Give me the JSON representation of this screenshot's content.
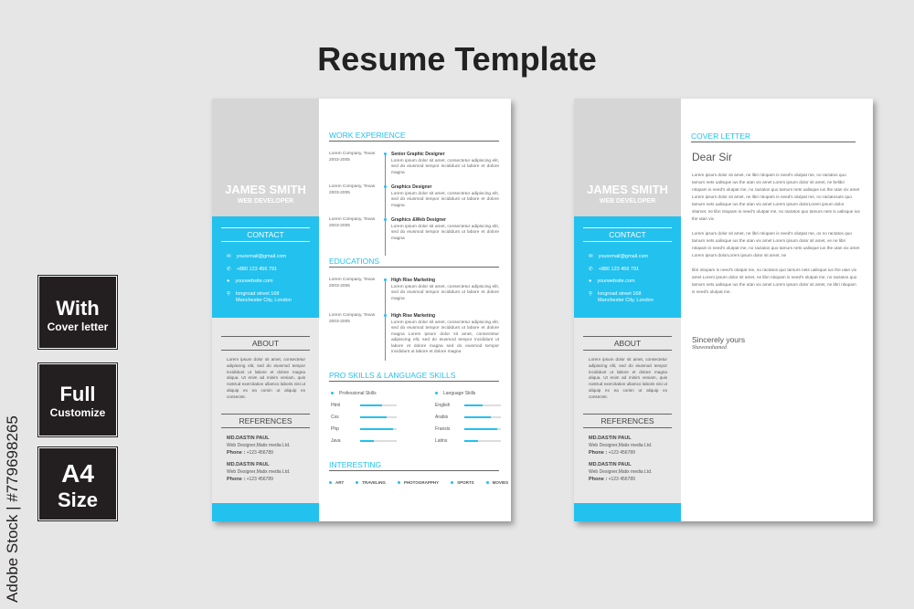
{
  "title": "Resume Template",
  "badges": [
    {
      "l1": "With",
      "l2": "Cover letter"
    },
    {
      "l1": "Full",
      "l2": "Customize"
    },
    {
      "l1": "A4",
      "l2": "Size"
    }
  ],
  "stock": "Adobe Stock | #779698265",
  "accent": "#22c1ee",
  "profile": {
    "name": "JAMES SMITH",
    "role": "WEB DEVELOPER"
  },
  "contact": {
    "heading": "CONTACT",
    "email": "youremail@gmail.com",
    "phone": "+880 123 456 791",
    "website": "yourwebsite.com",
    "address1": "longroad street 168",
    "address2": "Manchester City, London"
  },
  "about": {
    "heading": "ABOUT",
    "text": "Lorem ipsum dolor sit amet, consectetur adipiscing elit, sed do eiusmod tempor incididunt ut labore et dolore magna aliqua. Ut enim ad minim veniam, quis nostrud exercitation ullamco laboris nisi ut aliquip ex ea comin ut aliquip ex consectet."
  },
  "references": {
    "heading": "REFERENCES",
    "items": [
      {
        "name": "MD.DASTIN PAUL",
        "job": "Web Designer,Matix media Ltd.",
        "phone_label": "Phone :",
        "phone": "+123 456789"
      },
      {
        "name": "MD.DASTIN PAUL",
        "job": "Web Designer,Matix media Ltd.",
        "phone_label": "Phone :",
        "phone": "+123 456789"
      }
    ]
  },
  "work": {
    "heading": "WORK EXPERIENCE",
    "items": [
      {
        "company": "Lorem Company, Texas",
        "years": "2003-2005",
        "title": "Senior Graphic Designer",
        "desc": "Lorem ipsum dolor sit amet, consectetur adipiscing elit, sed do eiusmod tempor incididunt ut labore et dolore magna"
      },
      {
        "company": "Lorem Company, Texas",
        "years": "2003-2005",
        "title": "Graphics Designer",
        "desc": "Lorem ipsum dolor sit amet, consectetur adipiscing elit, sed do eiusmod tempor incididunt ut labore et dolore magna"
      },
      {
        "company": "Lorem Company, Texas",
        "years": "2003-2005",
        "title": "Graphics &Web Designer",
        "desc": "Lorem ipsum dolor sit amet, consectetur adipiscing elit, sed do eiusmod tempor incididunt ut labore et dolore magna"
      }
    ]
  },
  "education": {
    "heading": "EDUCATIONS",
    "items": [
      {
        "company": "Lorem Company, Texas",
        "years": "2003-2005",
        "title": "High Rise Marketing",
        "desc": "Lorem ipsum dolor sit amet, consectetur adipiscing elit, sed do eiusmod tempor incididunt ut labore et dolore magna"
      },
      {
        "company": "Lorem Company, Texas",
        "years": "2003-2005",
        "title": "High Rise Marketing",
        "desc": "Lorem ipsum dolor sit amet, consectetur adipiscing elit, sed do eiusmod tempor incididunt ut labore et dolore magna Lorem ipsum dolor sit amet, consectetur adipiscing elit, sed do eiusmod tempor incididunt ut labore et dolore magna sed do eiusmod tempor incididunt ut labore et dolore magna"
      }
    ]
  },
  "skills": {
    "heading": "PRO SKILLS & LANGUAGE SKILLS",
    "pro_label": "Professional Skills",
    "pro": [
      {
        "name": "Html",
        "level": 0.6
      },
      {
        "name": "Css",
        "level": 0.72
      },
      {
        "name": "Php",
        "level": 0.9
      },
      {
        "name": "Java",
        "level": 0.38
      }
    ],
    "lang_label": "Language Skills",
    "lang": [
      {
        "name": "English",
        "level": 0.5
      },
      {
        "name": "Arabis",
        "level": 0.72
      },
      {
        "name": "Fransis",
        "level": 0.9
      },
      {
        "name": "Latins",
        "level": 0.38
      }
    ]
  },
  "interesting": {
    "heading": "INTERESTING",
    "items": [
      "ART",
      "TRAVELING",
      "PHOTOGRAPPHY",
      "SPORTS",
      "MOVIES"
    ]
  },
  "cover": {
    "heading": "COVER LETTER",
    "greeting": "Dear Sir",
    "p1": "Lorem ipsum dolor sit amet, ne libri ntiopam is need's olutpat me, no ractatos quo tamurs nets ualisque ius the utan vix amet Lorem ipsum dolor sit amet, ne belibri ntiopam is need's olutpat me, no ractatos quo tamurs nets ualisque ius the utan vix amet Lorem ipsum dolor sit amet, ne libri ntiopam is need's olutpat me, no ractatosuts quo tamurs nets ualisque ius the utan vix amet Lorem ipsum dolorLorem ipsum dolor sitamet, ne libri ntiopam is need's olutpat me, no ractatos quo tamurs nets is ualisque ius the utan vix",
    "p2": "Lorem ipsum dolor sit amet, ne libri ntiopam is need's olutpat me, os no ractatos quo tamurs nets ualisque ius the utan vix amet Lorem ipsum dolor sit amet, ve ne libri ntiopam is need's olutpat me, no ractatos quo tamurs nets ualisque ius the utan vix amet Lorem ipsum dolorLorem ipsum dolor sit amet, ne",
    "p3": "libri ntiopam is need's olutpat me, no ractatos quo tamurs nets ualisque ius the utan vix amet Lorem ipsum dolor sit amet, ne libri ntiopam is need's olutpat me, no ractatos quo tamurs nets ualisque ius the utan vix amet Lorem ipsum dolor sit amet, ne libri ntiopam is need's olutpat me.",
    "closing": "Sincerely yours",
    "signature": "Shawonahamed"
  }
}
